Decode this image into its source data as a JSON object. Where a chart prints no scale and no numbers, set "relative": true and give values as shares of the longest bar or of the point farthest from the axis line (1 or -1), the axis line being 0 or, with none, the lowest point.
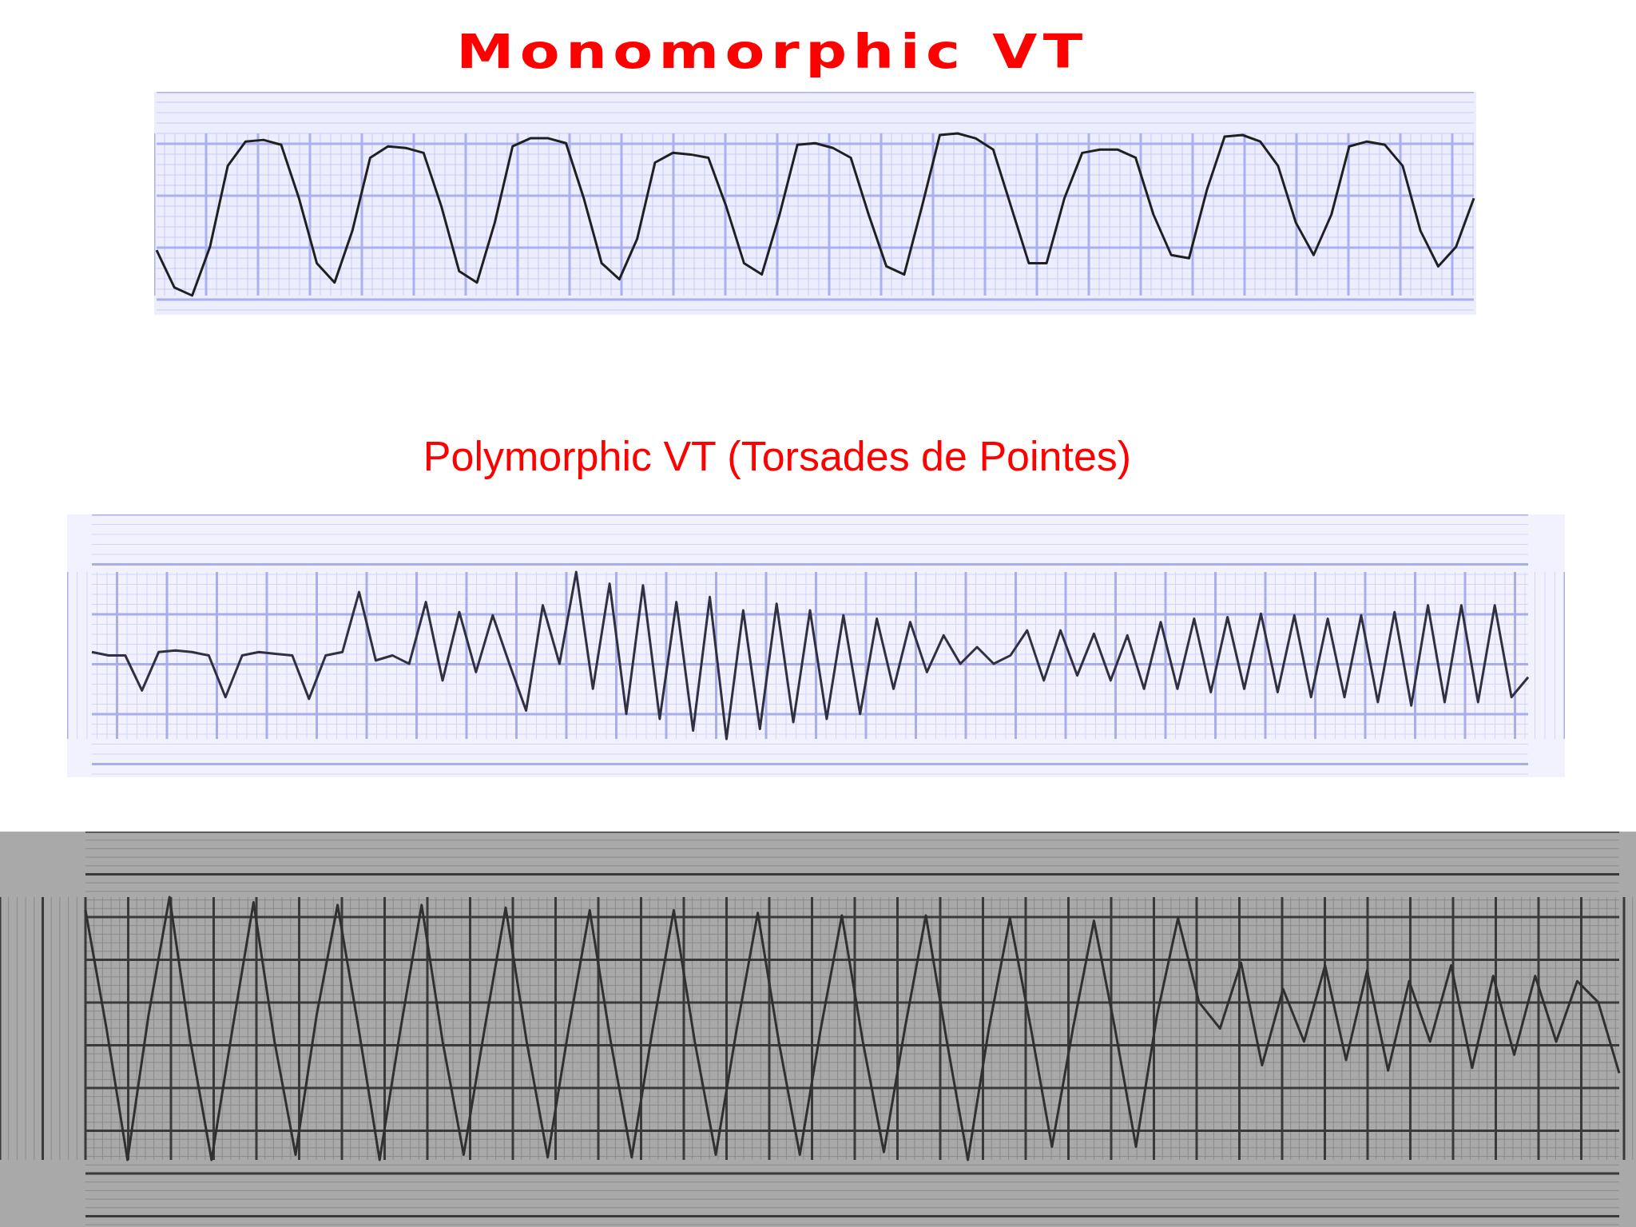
{
  "chart_data": [
    {
      "type": "line",
      "title": "Monomorphic VT",
      "relative": true,
      "grid": true,
      "categories": [
        null,
        null,
        null,
        null,
        null,
        null,
        null,
        null,
        null,
        null,
        null,
        null,
        null,
        null,
        null,
        null,
        null,
        null,
        null,
        null,
        null,
        null,
        null,
        null,
        null,
        null,
        null,
        null,
        null,
        null,
        null,
        null,
        null,
        null,
        null,
        null,
        null,
        null,
        null,
        null,
        null,
        null,
        null,
        null,
        null,
        null,
        null,
        null,
        null,
        null,
        null,
        null,
        null,
        null,
        null,
        null,
        null,
        null,
        null,
        null,
        null,
        null,
        null,
        null,
        null,
        null,
        null,
        null,
        null,
        null,
        null,
        null,
        null,
        null,
        null
      ],
      "series": [
        {
          "color": "#202020",
          "values": [
            0.28,
            0.05,
            0.0,
            0.3,
            0.8,
            0.95,
            0.96,
            0.93,
            0.6,
            0.2,
            0.08,
            0.4,
            0.85,
            0.92,
            0.91,
            0.88,
            0.55,
            0.15,
            0.08,
            0.45,
            0.92,
            0.97,
            0.97,
            0.94,
            0.6,
            0.2,
            0.1,
            0.35,
            0.82,
            0.88,
            0.87,
            0.85,
            0.55,
            0.2,
            0.13,
            0.5,
            0.93,
            0.94,
            0.91,
            0.85,
            0.5,
            0.18,
            0.13,
            0.55,
            0.99,
            1.0,
            0.97,
            0.9,
            0.55,
            0.2,
            0.2,
            0.6,
            0.88,
            0.9,
            0.9,
            0.85,
            0.5,
            0.25,
            0.23,
            0.65,
            0.98,
            0.99,
            0.95,
            0.8,
            0.45,
            0.25,
            0.5,
            0.92,
            0.95,
            0.93,
            0.8,
            0.4,
            0.18,
            0.3,
            0.6
          ]
        }
      ]
    },
    {
      "type": "line",
      "title": "Polymorphic VT (Torsades de Pointes)",
      "relative": true,
      "grid": true,
      "categories": [
        null,
        null,
        null,
        null,
        null,
        null,
        null,
        null,
        null,
        null,
        null,
        null,
        null,
        null,
        null,
        null,
        null,
        null,
        null,
        null,
        null,
        null,
        null,
        null,
        null,
        null,
        null,
        null,
        null,
        null,
        null,
        null,
        null,
        null,
        null,
        null,
        null,
        null,
        null,
        null,
        null,
        null,
        null,
        null,
        null,
        null,
        null,
        null,
        null,
        null,
        null,
        null,
        null,
        null,
        null,
        null,
        null,
        null,
        null,
        null,
        null,
        null,
        null,
        null,
        null,
        null,
        null,
        null,
        null,
        null,
        null,
        null,
        null,
        null,
        null,
        null,
        null,
        null,
        null,
        null,
        null,
        null,
        null,
        null,
        null,
        null,
        null
      ],
      "series": [
        {
          "color": "#303040",
          "values": [
            0.52,
            0.5,
            0.5,
            0.29,
            0.52,
            0.53,
            0.52,
            0.5,
            0.25,
            0.5,
            0.52,
            0.51,
            0.5,
            0.24,
            0.5,
            0.52,
            0.88,
            0.47,
            0.5,
            0.45,
            0.82,
            0.35,
            0.76,
            0.4,
            0.74,
            0.45,
            0.17,
            0.8,
            0.45,
            1.0,
            0.3,
            0.93,
            0.15,
            0.92,
            0.12,
            0.82,
            0.05,
            0.85,
            0.0,
            0.77,
            0.06,
            0.81,
            0.1,
            0.77,
            0.12,
            0.74,
            0.15,
            0.72,
            0.3,
            0.7,
            0.4,
            0.62,
            0.45,
            0.55,
            0.45,
            0.5,
            0.65,
            0.35,
            0.65,
            0.38,
            0.63,
            0.35,
            0.62,
            0.3,
            0.7,
            0.3,
            0.72,
            0.28,
            0.73,
            0.3,
            0.75,
            0.28,
            0.74,
            0.25,
            0.72,
            0.25,
            0.74,
            0.22,
            0.76,
            0.2,
            0.8,
            0.22,
            0.8,
            0.22,
            0.8,
            0.25,
            0.37
          ]
        }
      ]
    },
    {
      "type": "line",
      "relative": true,
      "grid": true,
      "categories": [
        null,
        null,
        null,
        null,
        null,
        null,
        null,
        null,
        null,
        null,
        null,
        null,
        null,
        null,
        null,
        null,
        null,
        null,
        null,
        null,
        null,
        null,
        null,
        null,
        null,
        null,
        null,
        null,
        null,
        null,
        null,
        null,
        null,
        null,
        null,
        null,
        null,
        null,
        null,
        null,
        null,
        null,
        null,
        null,
        null,
        null,
        null,
        null,
        null,
        null,
        null,
        null,
        null,
        null,
        null,
        null,
        null,
        null,
        null,
        null,
        null,
        null,
        null,
        null,
        null,
        null,
        null,
        null,
        null,
        null,
        null,
        null,
        null,
        null
      ],
      "series": [
        {
          "color": "#303030",
          "values": [
            0.95,
            0.5,
            0.0,
            0.55,
            1.0,
            0.45,
            0.0,
            0.5,
            0.98,
            0.45,
            0.02,
            0.55,
            0.97,
            0.5,
            0.0,
            0.5,
            0.97,
            0.45,
            0.02,
            0.5,
            0.96,
            0.45,
            0.01,
            0.5,
            0.95,
            0.45,
            0.01,
            0.5,
            0.95,
            0.45,
            0.02,
            0.5,
            0.94,
            0.45,
            0.02,
            0.5,
            0.93,
            0.45,
            0.03,
            0.5,
            0.93,
            0.45,
            0.0,
            0.5,
            0.92,
            0.5,
            0.05,
            0.5,
            0.91,
            0.5,
            0.05,
            0.55,
            0.92,
            0.6,
            0.5,
            0.75,
            0.36,
            0.65,
            0.45,
            0.74,
            0.38,
            0.72,
            0.34,
            0.68,
            0.45,
            0.74,
            0.35,
            0.7,
            0.4,
            0.7,
            0.45,
            0.68,
            0.6,
            0.33
          ]
        }
      ]
    }
  ]
}
